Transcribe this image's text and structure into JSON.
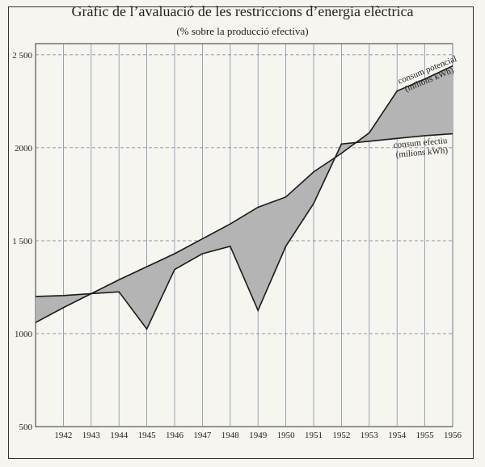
{
  "title": "Gràfic de l’avaluació de les restriccions d’energia elèctrica",
  "subtitle": "(% sobre la producció efectiva)",
  "chart_data": {
    "type": "area",
    "title": "Gràfic de l’avaluació de les restriccions d’energia elèctrica",
    "subtitle": "(% sobre la producció efectiva)",
    "x": [
      1941,
      1942,
      1943,
      1944,
      1945,
      1946,
      1947,
      1948,
      1949,
      1950,
      1951,
      1952,
      1953,
      1954,
      1955,
      1956
    ],
    "x_tick_labels": [
      "1942",
      "1943",
      "1944",
      "1945",
      "1946",
      "1947",
      "1948",
      "1949",
      "1950",
      "1951",
      "1952",
      "1953",
      "1954",
      "1955",
      "1956"
    ],
    "y_tick_labels": [
      "500",
      "1000",
      "1 500",
      "2000",
      "2 500"
    ],
    "y_ticks": [
      500,
      1000,
      1500,
      2000,
      2500
    ],
    "ylim": [
      500,
      2560
    ],
    "xlim": [
      1941,
      1956
    ],
    "grid": true,
    "series": [
      {
        "name": "consum potencial (milions kWh)",
        "values": [
          1060,
          1140,
          1215,
          1290,
          1360,
          1430,
          1510,
          1590,
          1680,
          1735,
          1870,
          1970,
          2080,
          2305,
          2370,
          2440
        ]
      },
      {
        "name": "consum efectiu (milions kWh)",
        "values": [
          1200,
          1205,
          1215,
          1225,
          1025,
          1345,
          1430,
          1470,
          1125,
          1470,
          1700,
          2020,
          2035,
          2050,
          2065,
          2075
        ]
      }
    ],
    "label_potencial_line1": "consum potencial",
    "label_potencial_line2": "(milions kWh)",
    "label_efectiu_line1": "consum efectiu",
    "label_efectiu_line2": "(milions kWh)",
    "colors": {
      "fill": "#b4b4b4",
      "line": "#1a1a1a",
      "grid_vertical": "#7b8fa8",
      "grid_horizontal": "#7b8fa8",
      "frame": "#333333",
      "background": "#f7f5ef"
    }
  }
}
